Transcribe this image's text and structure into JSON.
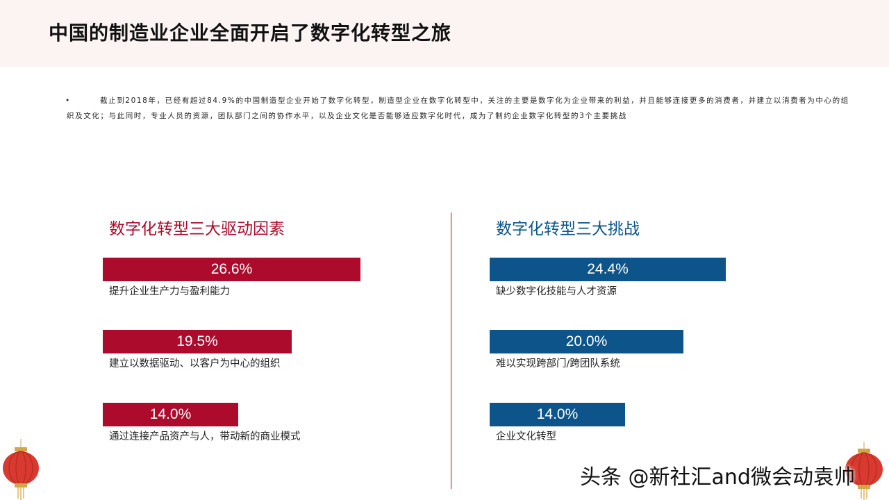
{
  "slide": {
    "title": "中国的制造业企业全面开启了数字化转型之旅",
    "intro_bullet": "•",
    "intro_text": "截止到2018年，已经有超过84.9%的中国制造型企业开始了数字化转型，制造型企业在数字化转型中，关注的主要是数字化为企业带来的利益，并且能够连接更多的消费者，并建立以消费者为中心的组织及文化；与此同时，专业人员的资源，团队部门之间的协作水平，以及企业文化是否能够适应数字化时代，成为了制约企业数字化转型的3个主要挑战",
    "watermark": "头条 @新社汇and微会动袁帅"
  },
  "chart_data": [
    {
      "type": "bar",
      "title": "数字化转型三大驱动因素",
      "color": "#ad0b2b",
      "unit": "%",
      "categories": [
        "提升企业生产力与盈利能力",
        "建立以数据驱动、以客户为中心的组织",
        "通过连接产品资产与人，带动新的商业模式"
      ],
      "values": [
        26.6,
        19.5,
        14.0
      ],
      "value_labels": [
        "26.6%",
        "19.5%",
        "14.0%"
      ]
    },
    {
      "type": "bar",
      "title": "数字化转型三大挑战",
      "color": "#0c5489",
      "unit": "%",
      "categories": [
        "缺少数字化技能与人才资源",
        "难以实现跨部门/跨团队系统",
        "企业文化转型"
      ],
      "values": [
        24.4,
        20.0,
        14.0
      ],
      "value_labels": [
        "24.4%",
        "20.0%",
        "14.0%"
      ]
    }
  ]
}
